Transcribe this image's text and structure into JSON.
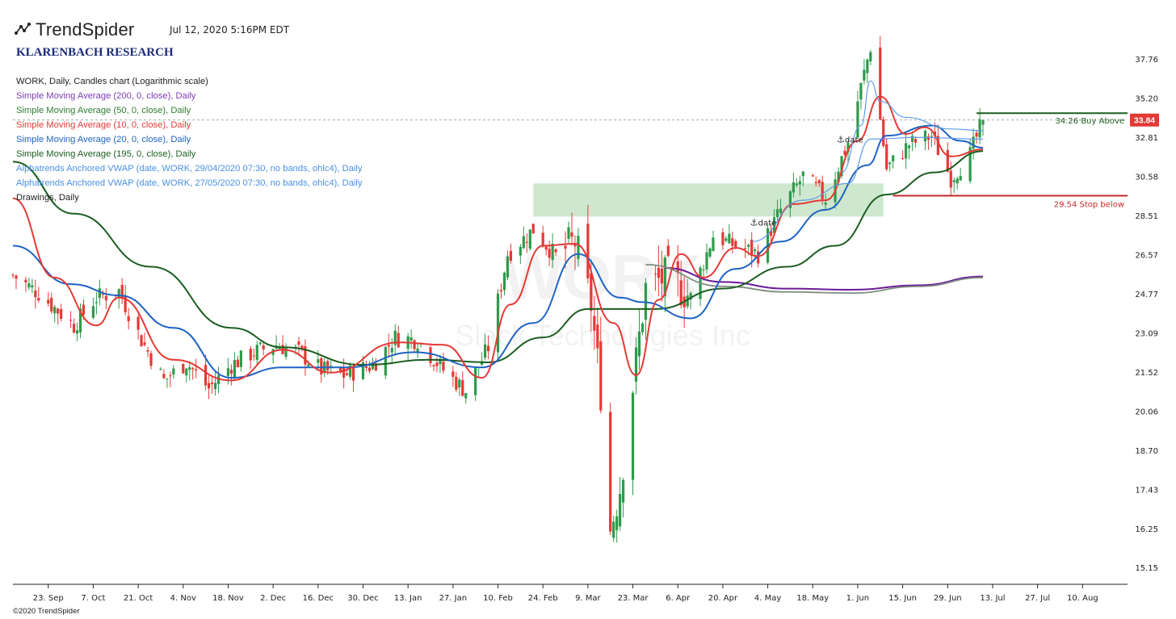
{
  "header": {
    "brand": "TrendSpider",
    "timestamp": "Jul 12, 2020 5:16PM EDT",
    "research": "KLARENBACH RESEARCH",
    "copyright": "©2020 TrendSpider"
  },
  "legend": [
    {
      "text": "WORK, Daily, Candles chart (Logarithmic scale)",
      "color": "#222222"
    },
    {
      "text": "Simple Moving Average (200, 0, close), Daily",
      "color": "#7a3bb5"
    },
    {
      "text": "Simple Moving Average (50, 0, close), Daily",
      "color": "#2e7d32"
    },
    {
      "text": "Simple Moving Average (10, 0, close), Daily",
      "color": "#e53935"
    },
    {
      "text": "Simple Moving Average (20, 0, close), Daily",
      "color": "#1e63c4"
    },
    {
      "text": "Simple Moving Average (195, 0, close), Daily",
      "color": "#1b5e20"
    },
    {
      "text": "Alphatrends Anchored VWAP (date, WORK, 29/04/2020 07:30, no bands, ohlc4), Daily",
      "color": "#4a90e2"
    },
    {
      "text": "Alphatrends Anchored VWAP (date, WORK, 27/05/2020 07:30, no bands, ohlc4), Daily",
      "color": "#4a90e2"
    },
    {
      "text": "Drawings, Daily",
      "color": "#222222"
    }
  ],
  "chart_data": {
    "type": "candlestick",
    "symbol": "WORK",
    "scale": "log",
    "ylim": [
      14.7,
      39.5
    ],
    "y_ticks": [
      15.15,
      16.25,
      17.43,
      18.7,
      20.06,
      21.52,
      23.09,
      24.77,
      26.57,
      28.51,
      30.58,
      32.81,
      35.2,
      37.76
    ],
    "x_ticks": [
      "23. Sep",
      "7. Oct",
      "21. Oct",
      "4. Nov",
      "18. Nov",
      "2. Dec",
      "16. Dec",
      "30. Dec",
      "13. Jan",
      "27. Jan",
      "10. Feb",
      "24. Feb",
      "9. Mar",
      "23. Mar",
      "6. Apr",
      "20. Apr",
      "4. May",
      "18. May",
      "1. Jun",
      "15. Jun",
      "29. Jun",
      "13. Jul",
      "27. Jul",
      "10. Aug"
    ],
    "x_tick_dates": [
      "2019-09-23",
      "2019-10-07",
      "2019-10-21",
      "2019-11-04",
      "2019-11-18",
      "2019-12-02",
      "2019-12-16",
      "2019-12-30",
      "2020-01-13",
      "2020-01-27",
      "2020-02-10",
      "2020-02-24",
      "2020-03-09",
      "2020-03-23",
      "2020-04-06",
      "2020-04-20",
      "2020-05-04",
      "2020-05-18",
      "2020-06-01",
      "2020-06-15",
      "2020-06-29",
      "2020-07-13",
      "2020-07-27",
      "2020-08-10"
    ],
    "x_range": [
      "2019-09-12",
      "2020-08-24"
    ],
    "watermark": {
      "symbol": "WORK",
      "name": "Slack Technologies Inc"
    },
    "last_price": "33.84",
    "colors": {
      "up": "#2e9a4a",
      "down": "#e53935",
      "zone": "#a5d6a7",
      "buy": "#1b5e20",
      "stop": "#c62828"
    },
    "candle_path": [
      [
        "2019-09-12",
        25.6
      ],
      [
        "2019-09-20",
        24.8
      ],
      [
        "2019-10-01",
        23.4
      ],
      [
        "2019-10-08",
        24.6
      ],
      [
        "2019-10-15",
        24.9
      ],
      [
        "2019-10-22",
        22.8
      ],
      [
        "2019-10-29",
        21.2
      ],
      [
        "2019-11-05",
        21.9
      ],
      [
        "2019-11-12",
        20.9
      ],
      [
        "2019-11-19",
        21.8
      ],
      [
        "2019-11-26",
        22.3
      ],
      [
        "2019-12-03",
        22.6
      ],
      [
        "2019-12-10",
        22.3
      ],
      [
        "2019-12-17",
        21.6
      ],
      [
        "2019-12-24",
        21.4
      ],
      [
        "2020-01-02",
        21.8
      ],
      [
        "2020-01-09",
        22.9
      ],
      [
        "2020-01-16",
        22.8
      ],
      [
        "2020-01-24",
        21.6
      ],
      [
        "2020-01-31",
        20.8
      ],
      [
        "2020-02-07",
        22.5
      ],
      [
        "2020-02-13",
        26.6
      ],
      [
        "2020-02-21",
        27.8
      ],
      [
        "2020-02-28",
        26.5
      ],
      [
        "2020-03-05",
        27.2
      ],
      [
        "2020-03-10",
        24.3
      ],
      [
        "2020-03-13",
        20.8
      ],
      [
        "2020-03-16",
        16.2
      ],
      [
        "2020-03-19",
        17.5
      ],
      [
        "2020-03-23",
        21.0
      ],
      [
        "2020-03-27",
        25.0
      ],
      [
        "2020-04-03",
        25.6
      ],
      [
        "2020-04-10",
        24.6
      ],
      [
        "2020-04-17",
        27.5
      ],
      [
        "2020-04-24",
        27.0
      ],
      [
        "2020-05-01",
        26.6
      ],
      [
        "2020-05-08",
        28.8
      ],
      [
        "2020-05-15",
        30.6
      ],
      [
        "2020-05-22",
        29.4
      ],
      [
        "2020-05-29",
        32.5
      ],
      [
        "2020-06-03",
        36.8
      ],
      [
        "2020-06-05",
        38.6
      ],
      [
        "2020-06-10",
        31.0
      ],
      [
        "2020-06-17",
        32.4
      ],
      [
        "2020-06-24",
        32.9
      ],
      [
        "2020-06-30",
        30.5
      ],
      [
        "2020-07-06",
        31.8
      ],
      [
        "2020-07-10",
        33.84
      ]
    ],
    "series": [
      {
        "name": "SMA 200",
        "color": "#6a1b9a",
        "width": 2,
        "values": [
          [
            "2020-04-02",
            25.95
          ],
          [
            "2020-04-20",
            25.3
          ],
          [
            "2020-05-10",
            25.0
          ],
          [
            "2020-05-30",
            24.95
          ],
          [
            "2020-06-20",
            25.15
          ],
          [
            "2020-07-10",
            25.55
          ]
        ]
      },
      {
        "name": "SMA 195",
        "color": "#7f8c7f",
        "width": 1.8,
        "values": [
          [
            "2020-03-27",
            26.1
          ],
          [
            "2020-04-20",
            25.1
          ],
          [
            "2020-05-10",
            24.85
          ],
          [
            "2020-05-30",
            24.8
          ],
          [
            "2020-06-20",
            25.1
          ],
          [
            "2020-07-10",
            25.5
          ]
        ]
      },
      {
        "name": "SMA 50",
        "color": "#1b5e20",
        "width": 2,
        "values": [
          [
            "2019-09-12",
            31.4
          ],
          [
            "2019-10-01",
            28.6
          ],
          [
            "2019-10-25",
            26.0
          ],
          [
            "2019-11-19",
            23.3
          ],
          [
            "2019-12-05",
            22.5
          ],
          [
            "2019-12-30",
            21.8
          ],
          [
            "2020-01-20",
            22.0
          ],
          [
            "2020-02-07",
            21.9
          ],
          [
            "2020-02-24",
            22.9
          ],
          [
            "2020-03-09",
            24.1
          ],
          [
            "2020-03-30",
            24.1
          ],
          [
            "2020-04-20",
            25.0
          ],
          [
            "2020-05-10",
            26.0
          ],
          [
            "2020-05-25",
            27.0
          ],
          [
            "2020-06-10",
            29.6
          ],
          [
            "2020-06-25",
            30.8
          ],
          [
            "2020-07-10",
            32.0
          ]
        ]
      },
      {
        "name": "SMA 20",
        "color": "#1e63c4",
        "width": 2,
        "values": [
          [
            "2019-09-12",
            27.0
          ],
          [
            "2019-09-30",
            25.2
          ],
          [
            "2019-10-15",
            24.7
          ],
          [
            "2019-11-01",
            23.3
          ],
          [
            "2019-11-19",
            21.3
          ],
          [
            "2019-12-05",
            21.7
          ],
          [
            "2019-12-25",
            21.7
          ],
          [
            "2020-01-15",
            22.3
          ],
          [
            "2020-02-05",
            21.7
          ],
          [
            "2020-02-21",
            23.5
          ],
          [
            "2020-03-06",
            26.6
          ],
          [
            "2020-03-19",
            24.6
          ],
          [
            "2020-03-26",
            24.4
          ],
          [
            "2020-04-10",
            23.7
          ],
          [
            "2020-04-24",
            25.9
          ],
          [
            "2020-05-08",
            27.2
          ],
          [
            "2020-05-22",
            28.8
          ],
          [
            "2020-06-04",
            31.2
          ],
          [
            "2020-06-10",
            32.9
          ],
          [
            "2020-06-24",
            33.5
          ],
          [
            "2020-07-03",
            32.6
          ],
          [
            "2020-07-10",
            32.2
          ]
        ]
      },
      {
        "name": "SMA 10",
        "color": "#e53935",
        "width": 2,
        "values": [
          [
            "2019-09-12",
            29.4
          ],
          [
            "2019-09-25",
            25.5
          ],
          [
            "2019-10-08",
            23.4
          ],
          [
            "2019-10-15",
            24.6
          ],
          [
            "2019-11-01",
            22.0
          ],
          [
            "2019-11-19",
            21.2
          ],
          [
            "2019-12-05",
            22.4
          ],
          [
            "2019-12-20",
            21.5
          ],
          [
            "2020-01-10",
            22.7
          ],
          [
            "2020-01-24",
            22.6
          ],
          [
            "2020-02-05",
            21.3
          ],
          [
            "2020-02-14",
            24.3
          ],
          [
            "2020-02-24",
            27.0
          ],
          [
            "2020-03-05",
            27.1
          ],
          [
            "2020-03-17",
            23.5
          ],
          [
            "2020-03-24",
            21.4
          ],
          [
            "2020-03-31",
            24.5
          ],
          [
            "2020-04-07",
            26.6
          ],
          [
            "2020-04-14",
            25.5
          ],
          [
            "2020-04-24",
            26.9
          ],
          [
            "2020-05-01",
            26.5
          ],
          [
            "2020-05-12",
            29.1
          ],
          [
            "2020-05-22",
            29.3
          ],
          [
            "2020-06-01",
            32.6
          ],
          [
            "2020-06-08",
            35.3
          ],
          [
            "2020-06-16",
            33.0
          ],
          [
            "2020-06-22",
            33.4
          ],
          [
            "2020-06-30",
            31.7
          ],
          [
            "2020-07-10",
            32.1
          ]
        ]
      },
      {
        "name": "VWAP 29/04/2020",
        "color": "#5b9be6",
        "width": 1.2,
        "values": [
          [
            "2020-04-29",
            27.2
          ],
          [
            "2020-05-15",
            29.3
          ],
          [
            "2020-05-29",
            30.2
          ],
          [
            "2020-06-05",
            32.7
          ],
          [
            "2020-06-20",
            32.8
          ],
          [
            "2020-07-10",
            32.7
          ]
        ]
      },
      {
        "name": "VWAP 27/05/2020",
        "color": "#5b9be6",
        "width": 1.2,
        "values": [
          [
            "2020-05-27",
            30.8
          ],
          [
            "2020-06-02",
            33.5
          ],
          [
            "2020-06-05",
            36.3
          ],
          [
            "2020-06-08",
            35.0
          ],
          [
            "2020-06-16",
            34.0
          ],
          [
            "2020-06-30",
            33.3
          ],
          [
            "2020-07-10",
            33.2
          ]
        ]
      }
    ],
    "zones": [
      {
        "x0": "2020-02-21",
        "x1": "2020-06-09",
        "y0": 28.45,
        "y1": 30.2
      }
    ],
    "levels": [
      {
        "label": "34.26 Buy Above",
        "value": 34.26,
        "x0": "2020-07-08",
        "color": "#1b5e20"
      },
      {
        "label": "29.54 Stop below",
        "value": 29.54,
        "x0": "2020-06-12",
        "color": "#c62828"
      }
    ],
    "annotations": [
      {
        "label": "date",
        "date": "2020-04-30",
        "value": 28.0
      },
      {
        "label": "date",
        "date": "2020-05-27",
        "value": 32.5
      }
    ]
  }
}
